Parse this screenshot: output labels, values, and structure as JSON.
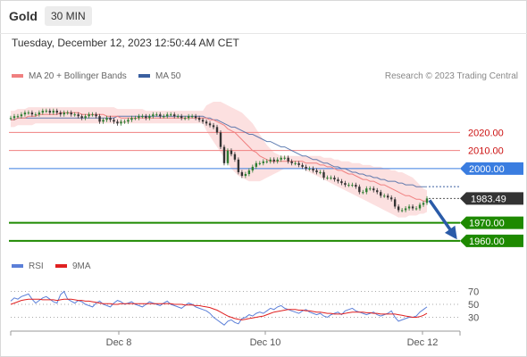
{
  "header": {
    "symbol": "Gold",
    "interval": "30 MIN"
  },
  "timestamp": "Tuesday, December 12, 2023 12:50:44 AM CET",
  "legend_main": [
    {
      "label": "MA 20 + Bollinger Bands",
      "color": "#f08080"
    },
    {
      "label": "MA 50",
      "color": "#3a5fa0"
    }
  ],
  "legend_rsi": [
    {
      "label": "RSI",
      "color": "#5b7fd8"
    },
    {
      "label": "9MA",
      "color": "#e02020"
    }
  ],
  "copyright": "Research © 2023 Trading Central",
  "colors": {
    "up": "#2e7d32",
    "level_red": "#f08080",
    "level_blue": "#3a7de0",
    "support": "#1e8a00",
    "price_tag": "#333333",
    "arrow": "#2a5ba8",
    "band": "#fbd5d5"
  },
  "chart_data": [
    {
      "type": "candlestick",
      "x_ticks": [
        "Dec 8",
        "Dec 10",
        "Dec 12"
      ],
      "ylim": [
        1955,
        2038
      ],
      "last_price": "1983.49",
      "levels": [
        {
          "label": "2020.00",
          "value": 2020,
          "style": "resistance"
        },
        {
          "label": "2010.00",
          "value": 2010,
          "style": "resistance"
        },
        {
          "label": "2000.00",
          "value": 2000,
          "style": "pivot"
        },
        {
          "label": "1970.00",
          "value": 1970,
          "style": "support"
        },
        {
          "label": "1960.00",
          "value": 1960,
          "style": "support"
        }
      ],
      "close": [
        2028,
        2029,
        2029,
        2030,
        2031,
        2031,
        2030,
        2030,
        2031,
        2032,
        2032,
        2031,
        2032,
        2031,
        2030,
        2031,
        2031,
        2030,
        2030,
        2029,
        2028,
        2029,
        2030,
        2030,
        2029,
        2026,
        2027,
        2028,
        2027,
        2026,
        2025,
        2026,
        2026,
        2027,
        2028,
        2028,
        2029,
        2029,
        2028,
        2029,
        2030,
        2030,
        2029,
        2029,
        2030,
        2030,
        2029,
        2029,
        2028,
        2028,
        2029,
        2029,
        2028,
        2027,
        2026,
        2025,
        2024,
        2023,
        2020,
        2012,
        2003,
        2010,
        2008,
        2005,
        1998,
        1996,
        1997,
        1999,
        2001,
        2003,
        2003,
        2004,
        2004,
        2005,
        2004,
        2005,
        2006,
        2006,
        2004,
        2003,
        2003,
        2002,
        2001,
        2000,
        2000,
        1999,
        1998,
        1998,
        1995,
        1995,
        1995,
        1994,
        1993,
        1992,
        1991,
        1991,
        1991,
        1990,
        1987,
        1987,
        1989,
        1989,
        1988,
        1987,
        1985,
        1985,
        1984,
        1983,
        1979,
        1977,
        1977,
        1978,
        1979,
        1978,
        1978,
        1980,
        1981,
        1983.49
      ],
      "ma20": [
        2027,
        2027,
        2028,
        2028,
        2028,
        2029,
        2029,
        2029,
        2030,
        2030,
        2030,
        2030,
        2030,
        2030,
        2031,
        2031,
        2031,
        2031,
        2031,
        2031,
        2030,
        2030,
        2030,
        2030,
        2030,
        2030,
        2030,
        2029,
        2029,
        2029,
        2029,
        2028,
        2028,
        2028,
        2028,
        2028,
        2028,
        2028,
        2028,
        2028,
        2028,
        2028,
        2028,
        2028,
        2028,
        2028,
        2028,
        2028,
        2028,
        2028,
        2028,
        2028,
        2028,
        2028,
        2028,
        2028,
        2027,
        2027,
        2026,
        2025,
        2024,
        2022,
        2021,
        2020,
        2018,
        2016,
        2014,
        2012,
        2010,
        2009,
        2007,
        2006,
        2005,
        2004,
        2004,
        2004,
        2004,
        2004,
        2004,
        2004,
        2004,
        2004,
        2004,
        2003,
        2003,
        2003,
        2003,
        2002,
        2002,
        2001,
        2001,
        2000,
        1999,
        1999,
        1998,
        1997,
        1997,
        1996,
        1995,
        1994,
        1994,
        1993,
        1993,
        1992,
        1991,
        1991,
        1990,
        1989,
        1988,
        1987,
        1986,
        1985,
        1985,
        1984,
        1983,
        1983,
        1982,
        1982
      ],
      "bb_upper": [
        2032,
        2032,
        2033,
        2033,
        2033,
        2034,
        2034,
        2034,
        2034,
        2034,
        2034,
        2034,
        2034,
        2034,
        2034,
        2034,
        2034,
        2034,
        2034,
        2034,
        2034,
        2034,
        2034,
        2034,
        2034,
        2034,
        2034,
        2034,
        2034,
        2034,
        2033,
        2033,
        2033,
        2033,
        2033,
        2033,
        2033,
        2033,
        2032,
        2032,
        2032,
        2032,
        2032,
        2032,
        2032,
        2032,
        2032,
        2032,
        2032,
        2032,
        2032,
        2032,
        2032,
        2032,
        2032,
        2035,
        2036,
        2037,
        2037,
        2037,
        2036,
        2035,
        2034,
        2033,
        2032,
        2031,
        2029,
        2027,
        2025,
        2022,
        2019,
        2016,
        2013,
        2011,
        2009,
        2008,
        2007,
        2007,
        2007,
        2007,
        2007,
        2007,
        2007,
        2007,
        2007,
        2007,
        2007,
        2007,
        2006,
        2006,
        2006,
        2005,
        2005,
        2004,
        2004,
        2004,
        2003,
        2003,
        2003,
        2002,
        2002,
        2002,
        2001,
        2001,
        2001,
        2000,
        2000,
        1999,
        1999,
        1998,
        1998,
        1997,
        1996,
        1995,
        1993,
        1991,
        1989,
        1988
      ],
      "bb_lower": [
        2023,
        2023,
        2024,
        2024,
        2024,
        2024,
        2024,
        2025,
        2025,
        2025,
        2025,
        2025,
        2025,
        2025,
        2025,
        2025,
        2025,
        2025,
        2025,
        2025,
        2025,
        2025,
        2025,
        2025,
        2025,
        2025,
        2025,
        2025,
        2025,
        2025,
        2025,
        2025,
        2025,
        2025,
        2025,
        2025,
        2025,
        2025,
        2025,
        2025,
        2025,
        2025,
        2025,
        2025,
        2025,
        2025,
        2025,
        2025,
        2025,
        2025,
        2025,
        2025,
        2025,
        2025,
        2025,
        2021,
        2018,
        2015,
        2012,
        2009,
        2006,
        2003,
        2000,
        1998,
        1996,
        1995,
        1994,
        1993,
        1993,
        1993,
        1993,
        1994,
        1995,
        1996,
        1997,
        1998,
        1999,
        2000,
        2000,
        2000,
        2000,
        2000,
        2000,
        1999,
        1998,
        1997,
        1996,
        1995,
        1994,
        1993,
        1992,
        1991,
        1990,
        1989,
        1988,
        1987,
        1986,
        1985,
        1984,
        1983,
        1982,
        1981,
        1980,
        1979,
        1978,
        1977,
        1976,
        1975,
        1974,
        1973,
        1973,
        1973,
        1974,
        1974,
        1974,
        1975,
        1975,
        1976
      ],
      "ma50": [
        2027,
        2027,
        2028,
        2028,
        2028,
        2028,
        2028,
        2028,
        2028,
        2028,
        2028,
        2028,
        2028,
        2028,
        2028,
        2028,
        2028,
        2028,
        2028,
        2028,
        2028,
        2028,
        2028,
        2028,
        2028,
        2028,
        2028,
        2028,
        2028,
        2028,
        2029,
        2029,
        2029,
        2029,
        2029,
        2029,
        2029,
        2029,
        2029,
        2029,
        2029,
        2029,
        2029,
        2029,
        2029,
        2029,
        2029,
        2029,
        2029,
        2029,
        2029,
        2029,
        2029,
        2029,
        2029,
        2028,
        2028,
        2027,
        2027,
        2026,
        2025,
        2024,
        2023,
        2023,
        2022,
        2021,
        2020,
        2019,
        2019,
        2018,
        2017,
        2016,
        2015,
        2015,
        2014,
        2013,
        2012,
        2012,
        2011,
        2010,
        2009,
        2008,
        2007,
        2007,
        2006,
        2005,
        2005,
        2004,
        2003,
        2003,
        2002,
        2001,
        2001,
        2000,
        2000,
        1999,
        1998,
        1998,
        1997,
        1997,
        1996,
        1996,
        1995,
        1995,
        1994,
        1994,
        1993,
        1993,
        1993,
        1992,
        1992,
        1991,
        1991,
        1991,
        1990,
        1990,
        1990,
        1990
      ]
    },
    {
      "type": "line",
      "ylim": [
        10,
        90
      ],
      "y_ticks": [
        70,
        50,
        30
      ],
      "series": [
        {
          "name": "RSI",
          "values": [
            55,
            60,
            58,
            62,
            64,
            66,
            58,
            52,
            56,
            60,
            62,
            58,
            54,
            52,
            65,
            70,
            58,
            55,
            52,
            56,
            54,
            50,
            48,
            46,
            52,
            55,
            50,
            48,
            46,
            52,
            56,
            54,
            50,
            52,
            54,
            50,
            48,
            46,
            50,
            54,
            52,
            50,
            48,
            52,
            55,
            50,
            48,
            46,
            44,
            48,
            52,
            50,
            46,
            44,
            42,
            40,
            36,
            30,
            26,
            22,
            18,
            24,
            26,
            22,
            20,
            28,
            30,
            34,
            32,
            36,
            38,
            36,
            40,
            44,
            42,
            46,
            48,
            44,
            42,
            40,
            38,
            36,
            40,
            42,
            38,
            36,
            34,
            36,
            32,
            30,
            34,
            36,
            38,
            34,
            40,
            42,
            44,
            40,
            38,
            36,
            34,
            36,
            38,
            34,
            32,
            34,
            36,
            40,
            30,
            24,
            26,
            28,
            30,
            30,
            32,
            38,
            42,
            46
          ]
        },
        {
          "name": "9MA",
          "values": [
            50,
            52,
            54,
            56,
            57,
            58,
            58,
            58,
            58,
            57,
            57,
            57,
            57,
            56,
            57,
            58,
            58,
            58,
            57,
            56,
            56,
            55,
            55,
            54,
            53,
            52,
            51,
            51,
            51,
            50,
            50,
            51,
            51,
            51,
            51,
            51,
            51,
            51,
            51,
            51,
            51,
            51,
            51,
            51,
            51,
            51,
            50,
            50,
            50,
            49,
            49,
            49,
            48,
            48,
            47,
            46,
            45,
            43,
            41,
            38,
            35,
            32,
            30,
            28,
            27,
            26,
            27,
            28,
            29,
            30,
            31,
            32,
            34,
            36,
            38,
            39,
            40,
            41,
            42,
            42,
            42,
            41,
            41,
            40,
            40,
            39,
            38,
            38,
            37,
            36,
            36,
            35,
            35,
            35,
            36,
            37,
            38,
            38,
            38,
            38,
            37,
            37,
            36,
            36,
            35,
            35,
            35,
            35,
            35,
            34,
            33,
            32,
            31,
            30,
            30,
            31,
            33,
            36
          ]
        }
      ]
    }
  ]
}
